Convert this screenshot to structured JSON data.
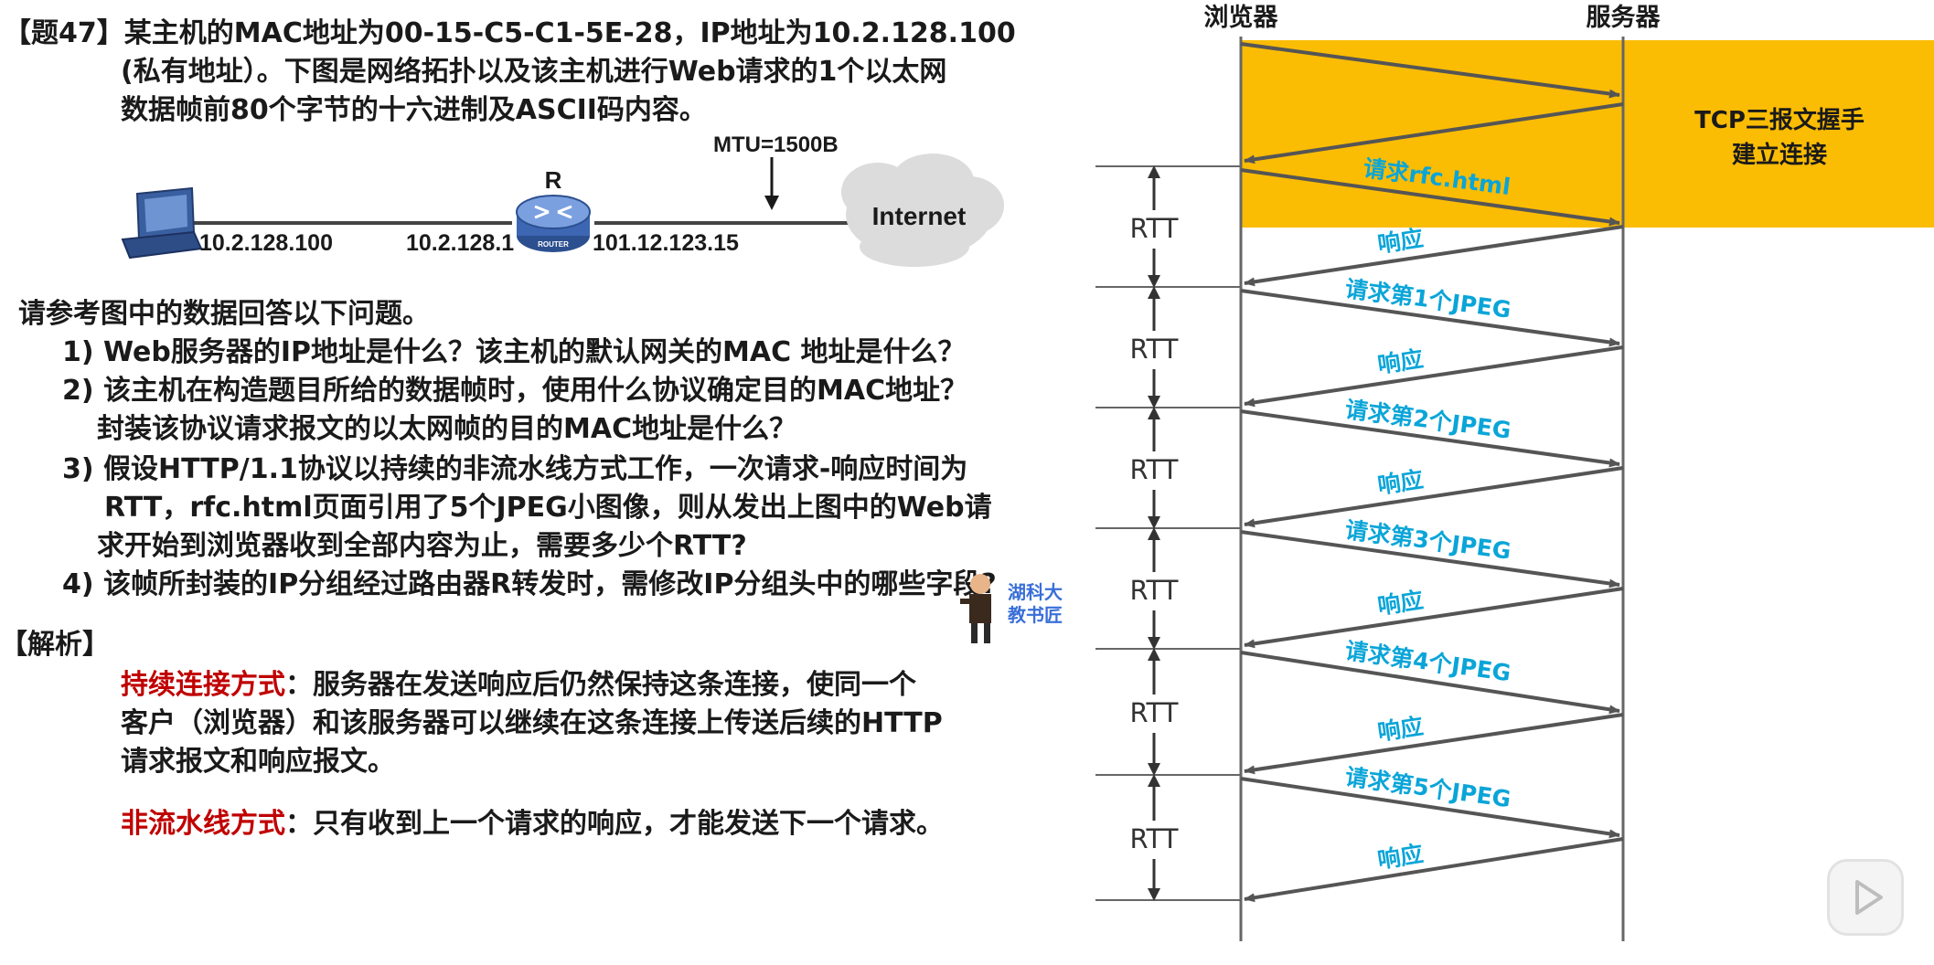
{
  "question": {
    "line1": "【题47】某主机的MAC地址为00-15-C5-C1-5E-28，IP地址为10.2.128.100",
    "line2": "(私有地址）。下图是网络拓扑以及该主机进行Web请求的1个以太网",
    "line3": "数据帧前80个字节的十六进制及ASCII码内容。"
  },
  "topology": {
    "mtu": "MTU=1500B",
    "router_label": "R",
    "router_text": "ROUTER",
    "host_ip": "10.2.128.100",
    "router_in_ip": "10.2.128.1",
    "router_out_ip": "101.12.123.15",
    "cloud": "Internet"
  },
  "questions": {
    "intro": "请参考图中的数据回答以下问题。",
    "q1": "1) Web服务器的IP地址是什么？该主机的默认网关的MAC 地址是什么？",
    "q2a": "2) 该主机在构造题目所给的数据帧时，使用什么协议确定目的MAC地址？",
    "q2b": "封装该协议请求报文的以太网帧的目的MAC地址是什么？",
    "q3a": "3) 假设HTTP/1.1协议以持续的非流水线方式工作，一次请求-响应时间为",
    "q3b": "RTT，rfc.html页面引用了5个JPEG小图像，则从发出上图中的Web请",
    "q3c": "求开始到浏览器收到全部内容为止，需要多少个RTT?",
    "q4": "4) 该帧所封装的IP分组经过路由器R转发时，需修改IP分组头中的哪些字段?"
  },
  "analysis": {
    "heading": "【解析】",
    "term1": "持续连接方式",
    "desc1a": "：服务器在发送响应后仍然保持这条连接，使同一个",
    "desc1b": "客户（浏览器）和该服务器可以继续在这条连接上传送后续的HTTP",
    "desc1c": "请求报文和响应报文。",
    "term2": "非流水线方式",
    "desc2": "：只有收到上一个请求的响应，才能发送下一个请求。"
  },
  "watermark": {
    "line1": "湖科大",
    "line2": "教书匠"
  },
  "sequence": {
    "browser": "浏览器",
    "server": "服务器",
    "handshake_line1": "TCP三报文握手",
    "handshake_line2": "建立连接",
    "rtt": "RTT",
    "requests": [
      "请求rfc.html",
      "请求第1个JPEG",
      "请求第2个JPEG",
      "请求第3个JPEG",
      "请求第4个JPEG",
      "请求第5个JPEG"
    ],
    "response": "响应",
    "colors": {
      "handshake": "#fbbc04",
      "label": "#0aa5d8",
      "arrow": "#555555"
    }
  }
}
